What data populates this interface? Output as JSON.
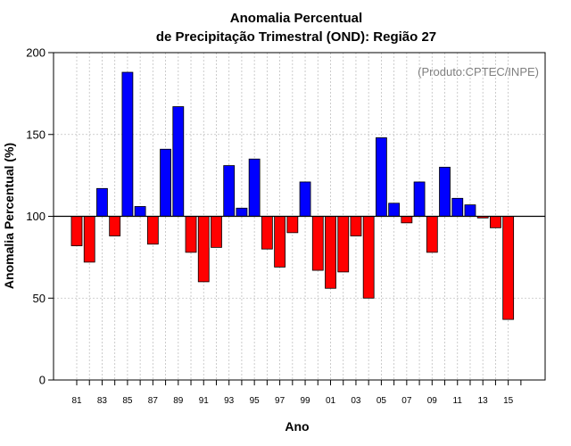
{
  "chart_data": {
    "type": "bar",
    "title": "Anomalia Percentual",
    "subtitle": "de Precipitação Trimestral (OND): Região 27",
    "xlabel": "Ano",
    "ylabel": "Anomalia Percentual (%)",
    "credit": "(Produto:CPTEC/INPE)",
    "baseline": 100,
    "ylim": [
      0,
      200
    ],
    "yticks": [
      0,
      50,
      100,
      150,
      200
    ],
    "grid": true,
    "colors": {
      "above": "#0000ff",
      "below": "#ff0000",
      "baseline": "#000000",
      "grid": "#c0c0c0"
    },
    "categories": [
      "81",
      "82",
      "83",
      "84",
      "85",
      "86",
      "87",
      "88",
      "89",
      "90",
      "91",
      "92",
      "93",
      "94",
      "95",
      "96",
      "97",
      "98",
      "99",
      "00",
      "01",
      "02",
      "03",
      "04",
      "05",
      "06",
      "07",
      "08",
      "09",
      "10",
      "11",
      "12",
      "13",
      "14",
      "15"
    ],
    "xtick_labels": [
      "81",
      "83",
      "85",
      "87",
      "89",
      "91",
      "93",
      "95",
      "97",
      "99",
      "01",
      "03",
      "05",
      "07",
      "09",
      "11",
      "13",
      "15"
    ],
    "values": [
      82,
      72,
      117,
      88,
      188,
      106,
      83,
      141,
      167,
      78,
      60,
      81,
      131,
      105,
      135,
      80,
      69,
      90,
      121,
      67,
      56,
      66,
      88,
      50,
      148,
      108,
      96,
      121,
      78,
      130,
      111,
      107,
      99,
      93,
      37
    ]
  }
}
